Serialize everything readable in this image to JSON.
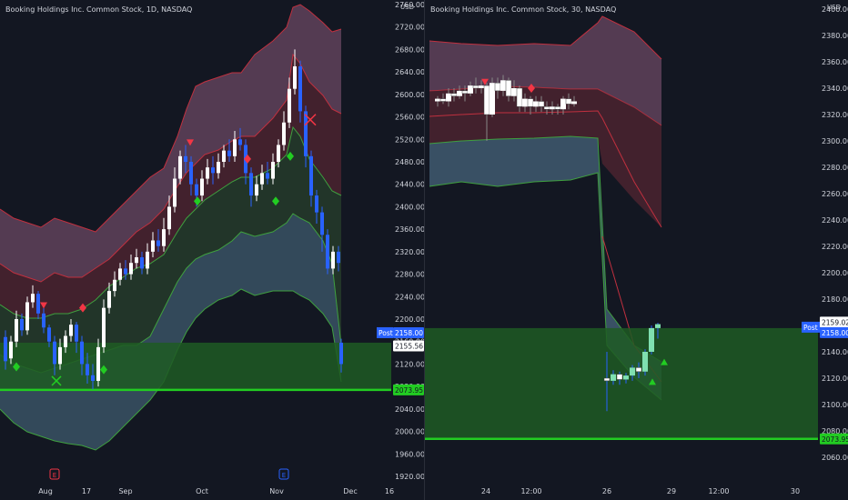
{
  "colors": {
    "background": "#131722",
    "axis_text": "#d1d4dc",
    "band_upper": "#8a5a7a",
    "band_lower": "#4a6a80",
    "zone_green": "#1e5a23",
    "support_line": "#22cc22",
    "candle_up": "#ffffff",
    "candle_down": "#2962ff",
    "bearish_marker": "#f23645",
    "bullish_marker": "#22cc22",
    "post_label": "#2962ff"
  },
  "left_chart": {
    "title": "Booking Holdings Inc. Common Stock, 1D, NASDAQ",
    "currency": "USD",
    "y_ticks": [
      "2760.00",
      "2720.00",
      "2680.00",
      "2640.00",
      "2600.00",
      "2560.00",
      "2520.00",
      "2480.00",
      "2440.00",
      "2400.00",
      "2360.00",
      "2320.00",
      "2280.00",
      "2240.00",
      "2200.00",
      "2160.00",
      "2120.00",
      "2080.00",
      "2040.00",
      "2000.00",
      "1960.00",
      "1920.00"
    ],
    "x_ticks": [
      "Aug",
      "17",
      "Sep",
      "Oct",
      "Nov",
      "Dec",
      "16"
    ],
    "post_label": "Post",
    "post_price": "2158.00",
    "last_price": "2155.56",
    "support_price": "2073.95",
    "event_icons": [
      "earnings-icon",
      "earnings-icon"
    ]
  },
  "right_chart": {
    "title": "Booking Holdings Inc. Common Stock, 30, NASDAQ",
    "currency": "USD",
    "y_ticks": [
      "2400.00",
      "2380.00",
      "2360.00",
      "2340.00",
      "2320.00",
      "2300.00",
      "2280.00",
      "2260.00",
      "2240.00",
      "2220.00",
      "2200.00",
      "2180.00",
      "2160.00",
      "2140.00",
      "2120.00",
      "2100.00",
      "2080.00",
      "2060.00"
    ],
    "x_ticks": [
      "24",
      "12:00",
      "26",
      "29",
      "12:00",
      "30"
    ],
    "post_label": "Post",
    "post_price": "2158.00",
    "last_price": "2159.02",
    "support_price": "2073.95"
  }
}
